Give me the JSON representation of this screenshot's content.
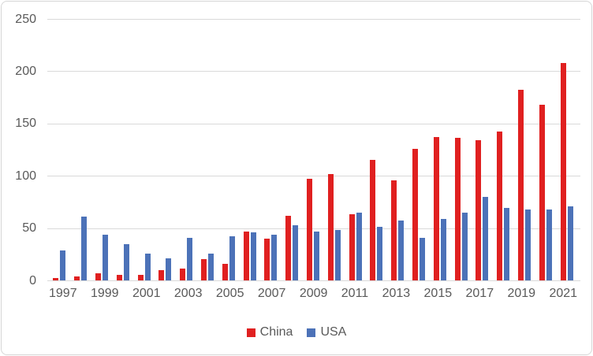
{
  "chart_data": {
    "type": "bar",
    "title": "",
    "xlabel": "",
    "ylabel": "",
    "categories": [
      1997,
      1998,
      1999,
      2000,
      2001,
      2002,
      2003,
      2004,
      2005,
      2006,
      2007,
      2008,
      2009,
      2010,
      2011,
      2012,
      2013,
      2014,
      2015,
      2016,
      2017,
      2018,
      2019,
      2020,
      2021
    ],
    "series": [
      {
        "name": "China",
        "color": "#e02020",
        "values": [
          2,
          4,
          7,
          5,
          5,
          10,
          11,
          20,
          16,
          47,
          40,
          62,
          97,
          102,
          63,
          115,
          96,
          126,
          137,
          136,
          134,
          142,
          182,
          168,
          208
        ]
      },
      {
        "name": "USA",
        "color": "#4c72b8",
        "values": [
          29,
          61,
          44,
          35,
          26,
          21,
          41,
          26,
          42,
          46,
          44,
          53,
          47,
          48,
          65,
          51,
          57,
          41,
          59,
          65,
          80,
          69,
          68,
          68,
          71
        ]
      }
    ],
    "ylim": [
      0,
      250
    ],
    "yticks": [
      0,
      50,
      100,
      150,
      200,
      250
    ],
    "xtick_labels": [
      "1997",
      "1999",
      "2001",
      "2003",
      "2005",
      "2007",
      "2009",
      "2011",
      "2013",
      "2015",
      "2017",
      "2019",
      "2021"
    ],
    "grid": "horizontal",
    "legend_position": "bottom-center",
    "legend_entries": [
      "China",
      "USA"
    ],
    "colors": {
      "gridline": "#d9d9d9",
      "axis_text": "#595959",
      "frame_border": "#d6d6d6",
      "background": "#ffffff",
      "china_red": "#e02020",
      "usa_blue": "#4c72b8"
    }
  }
}
